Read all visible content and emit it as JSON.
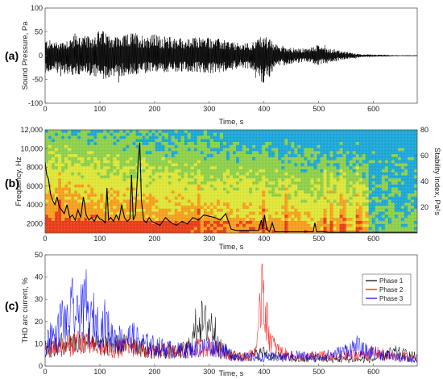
{
  "chart_data": [
    {
      "panel_label": "(a)",
      "type": "line",
      "xlabel": "Time, s",
      "ylabel": "Sound Pressure, Pa",
      "xlim": [
        0,
        680
      ],
      "ylim": [
        -100,
        100
      ],
      "xticks": [
        "0",
        "100",
        "200",
        "300",
        "400",
        "500",
        "600"
      ],
      "yticks": [
        "-100",
        "-50",
        "0",
        "50",
        "100"
      ],
      "grid": false,
      "series": [
        {
          "color": "#000000",
          "envelope": {
            "t": [
              0,
              20,
              40,
              60,
              80,
              100,
              120,
              140,
              160,
              180,
              200,
              220,
              240,
              260,
              280,
              300,
              320,
              340,
              360,
              380,
              400,
              420,
              440,
              460,
              480,
              500,
              520,
              540,
              560,
              580,
              600,
              620,
              640,
              660,
              680
            ],
            "upper": [
              35,
              30,
              35,
              45,
              40,
              55,
              45,
              40,
              50,
              45,
              45,
              40,
              40,
              35,
              40,
              40,
              35,
              30,
              25,
              30,
              45,
              25,
              20,
              15,
              15,
              25,
              15,
              10,
              6,
              3,
              2,
              2,
              1,
              1,
              1
            ],
            "lower": [
              -35,
              -35,
              -40,
              -45,
              -40,
              -55,
              -45,
              -45,
              -40,
              -40,
              -35,
              -35,
              -35,
              -35,
              -35,
              -40,
              -35,
              -30,
              -25,
              -30,
              -65,
              -25,
              -20,
              -15,
              -15,
              -20,
              -15,
              -10,
              -6,
              -3,
              -2,
              -2,
              -1,
              -1,
              -1
            ]
          }
        }
      ]
    },
    {
      "panel_label": "(b)",
      "type": "heatmap",
      "xlabel": "Time, s",
      "ylabel": "Frequency, Hz",
      "y2label": "Stability Index, Pa²s",
      "xlim": [
        0,
        680
      ],
      "ylim": [
        1000,
        12000
      ],
      "y2lim": [
        0,
        80
      ],
      "xticks": [
        "0",
        "100",
        "200",
        "300",
        "400",
        "500",
        "600"
      ],
      "yticks": [
        "2000",
        "4000",
        "6000",
        "8000",
        "10,000",
        "12,000"
      ],
      "y2ticks": [
        "20",
        "40",
        "60",
        "80"
      ],
      "colors": {
        "high": "#e8401c",
        "mid_high": "#f5a020",
        "mid": "#dfe63a",
        "mid_low": "#8fd04c",
        "low": "#1ea8d8"
      },
      "stability_index": {
        "t": [
          0,
          3,
          6,
          10,
          14,
          18,
          22,
          26,
          30,
          35,
          40,
          45,
          50,
          55,
          60,
          65,
          70,
          75,
          80,
          85,
          90,
          95,
          100,
          105,
          110,
          113,
          116,
          120,
          125,
          130,
          135,
          140,
          145,
          150,
          155,
          158,
          161,
          165,
          170,
          173,
          176,
          180,
          185,
          190,
          195,
          200,
          210,
          220,
          230,
          240,
          250,
          260,
          270,
          280,
          290,
          300,
          310,
          320,
          330,
          340,
          350,
          360,
          370,
          380,
          390,
          395,
          398,
          401,
          405,
          410,
          415,
          420,
          430,
          440,
          450,
          460,
          470,
          480,
          490,
          493,
          496,
          500,
          510,
          520,
          540,
          560,
          580,
          600,
          620,
          640,
          660,
          680
        ],
        "values": [
          55,
          45,
          42,
          30,
          25,
          22,
          28,
          20,
          18,
          15,
          22,
          12,
          14,
          10,
          18,
          12,
          28,
          14,
          10,
          12,
          9,
          14,
          11,
          10,
          8,
          35,
          10,
          12,
          9,
          14,
          10,
          22,
          12,
          9,
          11,
          45,
          10,
          14,
          55,
          70,
          25,
          10,
          8,
          12,
          9,
          8,
          6,
          12,
          8,
          6,
          9,
          7,
          12,
          10,
          14,
          13,
          12,
          10,
          15,
          3,
          2,
          2,
          2,
          2,
          2,
          10,
          3,
          14,
          3,
          1,
          8,
          1,
          1,
          1,
          1,
          1,
          1,
          1,
          1,
          8,
          1,
          1,
          1,
          0.5,
          0.5,
          0.5,
          0.5,
          0.5,
          0.5,
          0.5,
          0.5,
          0.5
        ]
      }
    },
    {
      "panel_label": "(c)",
      "type": "line",
      "xlabel": "Time, s",
      "ylabel": "THD arc current, %",
      "xlim": [
        0,
        680
      ],
      "ylim": [
        0,
        50
      ],
      "xticks": [
        "0",
        "100",
        "200",
        "300",
        "400",
        "500",
        "600"
      ],
      "yticks": [
        "0",
        "10",
        "20",
        "30",
        "40",
        "50"
      ],
      "legend_position": "top-right",
      "series": [
        {
          "name": "Phase 1",
          "color": "#000000",
          "x": [
            0,
            20,
            40,
            60,
            80,
            100,
            120,
            140,
            160,
            180,
            200,
            220,
            240,
            260,
            270,
            280,
            290,
            300,
            310,
            320,
            340,
            360,
            380,
            400,
            420,
            440,
            460,
            480,
            500,
            520,
            540,
            560,
            580,
            600,
            620,
            640,
            660,
            680
          ],
          "y": [
            9,
            8,
            12,
            10,
            14,
            9,
            10,
            9,
            11,
            8,
            7,
            7,
            6,
            8,
            12,
            22,
            18,
            20,
            16,
            8,
            5,
            4,
            5,
            6,
            4,
            4,
            3,
            3,
            4,
            3,
            3,
            3,
            3,
            3,
            5,
            6,
            5,
            4
          ]
        },
        {
          "name": "Phase 2",
          "color": "#ff0000",
          "x": [
            0,
            20,
            40,
            60,
            80,
            100,
            120,
            140,
            160,
            180,
            200,
            220,
            240,
            260,
            280,
            300,
            320,
            340,
            360,
            380,
            390,
            395,
            398,
            400,
            405,
            410,
            420,
            440,
            460,
            480,
            500,
            520,
            540,
            560,
            580,
            600,
            620,
            640,
            660,
            680
          ],
          "y": [
            7,
            9,
            8,
            12,
            9,
            8,
            7,
            8,
            9,
            7,
            6,
            7,
            6,
            7,
            8,
            9,
            7,
            5,
            4,
            5,
            12,
            35,
            50,
            30,
            20,
            14,
            8,
            5,
            4,
            4,
            5,
            4,
            4,
            5,
            5,
            6,
            5,
            4,
            4,
            3
          ]
        },
        {
          "name": "Phase 3",
          "color": "#0000ff",
          "x": [
            0,
            10,
            20,
            30,
            40,
            50,
            60,
            65,
            70,
            75,
            80,
            90,
            100,
            110,
            120,
            140,
            160,
            180,
            200,
            220,
            240,
            260,
            280,
            300,
            320,
            340,
            360,
            380,
            400,
            420,
            440,
            460,
            480,
            500,
            520,
            540,
            560,
            570,
            580,
            600,
            620,
            640,
            660,
            680
          ],
          "y": [
            8,
            15,
            12,
            22,
            18,
            26,
            20,
            32,
            22,
            30,
            18,
            22,
            16,
            20,
            14,
            12,
            13,
            10,
            9,
            8,
            7,
            7,
            8,
            9,
            8,
            5,
            4,
            4,
            4,
            4,
            4,
            5,
            4,
            4,
            5,
            6,
            8,
            9,
            7,
            6,
            5,
            4,
            3,
            3
          ]
        }
      ]
    }
  ]
}
